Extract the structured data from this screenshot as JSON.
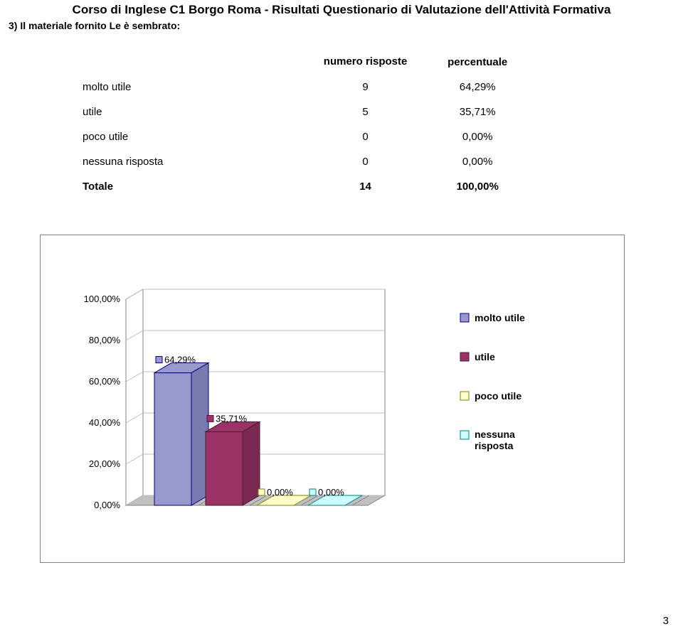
{
  "header": {
    "title": "Corso di Inglese C1 Borgo Roma - Risultati Questionario di Valutazione dell'Attività Formativa",
    "subtitle": "3) Il materiale fornito Le è sembrato:"
  },
  "columns": {
    "blank": "",
    "num": "numero risposte",
    "pct": "percentuale"
  },
  "rows": [
    {
      "label": "molto utile",
      "num": "9",
      "pct": "64,29%",
      "bold": false
    },
    {
      "label": "utile",
      "num": "5",
      "pct": "35,71%",
      "bold": false
    },
    {
      "label": "poco utile",
      "num": "0",
      "pct": "0,00%",
      "bold": false
    },
    {
      "label": "nessuna risposta",
      "num": "0",
      "pct": "0,00%",
      "bold": false
    },
    {
      "label": "Totale",
      "num": "14",
      "pct": "100,00%",
      "bold": true
    }
  ],
  "chart": {
    "type": "bar-3d",
    "background_color": "#ffffff",
    "plot_border_color": "#808080",
    "grid_color": "#bfbfbf",
    "floor_fill": "#c0c0c0",
    "floor_grid": "#808080",
    "wall_fill": "#ffffff",
    "wall_border": "#808080",
    "ylim": [
      0,
      100
    ],
    "ytick_step": 20,
    "yticks": [
      "0,00%",
      "20,00%",
      "40,00%",
      "60,00%",
      "80,00%",
      "100,00%"
    ],
    "tick_fontsize": 13,
    "label_fontsize": 13,
    "bars": [
      {
        "valueText": "64,29%",
        "valuePctOfMax": 64.29,
        "fill": "#9999cc",
        "stroke": "#000080",
        "sideFill": "#7a7ab0"
      },
      {
        "valueText": "35,71%",
        "valuePctOfMax": 35.71,
        "fill": "#993366",
        "stroke": "#4d1933",
        "sideFill": "#7a2a52"
      },
      {
        "valueText": "0,00%",
        "valuePctOfMax": 0,
        "fill": "#ffffcc",
        "stroke": "#808000",
        "sideFill": "#d0d0a0"
      },
      {
        "valueText": "0,00%",
        "valuePctOfMax": 0,
        "fill": "#ccffff",
        "stroke": "#008080",
        "sideFill": "#a0d0d0"
      }
    ],
    "legend": [
      {
        "label": "molto utile",
        "fill": "#9999cc",
        "stroke": "#000080"
      },
      {
        "label": "utile",
        "fill": "#993366",
        "stroke": "#4d1933"
      },
      {
        "label": "poco utile",
        "fill": "#ffffcc",
        "stroke": "#808000"
      },
      {
        "label": "nessuna risposta",
        "fill": "#ccffff",
        "stroke": "#008080"
      }
    ],
    "label_marker_stroke": "#000000",
    "label_marker_fill": "#ffffff"
  },
  "pageNumber": "3"
}
